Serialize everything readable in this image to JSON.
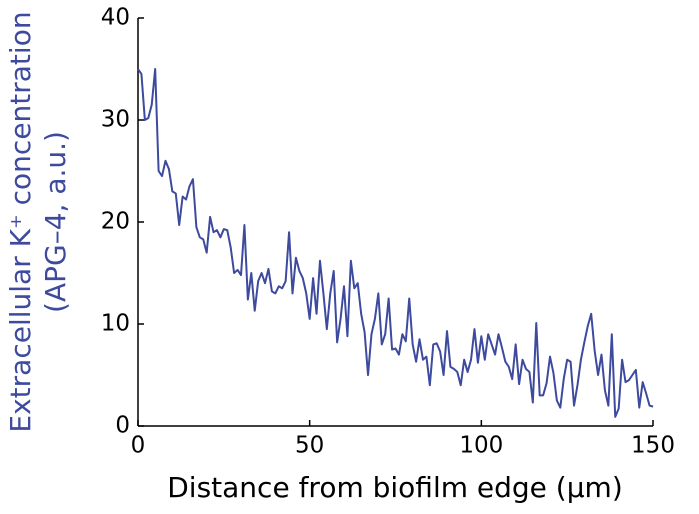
{
  "chart_data": {
    "type": "line",
    "xlabel": "Distance from biofilm edge (μm)",
    "ylabel": [
      "Extracellular K⁺ concentration",
      "(APG–4, a.u.)"
    ],
    "label_color": "#3d4a9e",
    "color": "#3d4a9e",
    "xlim": [
      0,
      150
    ],
    "xticks": [
      0,
      50,
      100,
      150
    ],
    "ylim": [
      0,
      40
    ],
    "yticks": [
      0,
      10,
      20,
      30,
      40
    ],
    "x": [
      0,
      1,
      2,
      3,
      4,
      5,
      6,
      7,
      8,
      9,
      10,
      11,
      12,
      13,
      14,
      15,
      16,
      17,
      18,
      19,
      20,
      21,
      22,
      23,
      24,
      25,
      26,
      27,
      28,
      29,
      30,
      31,
      32,
      33,
      34,
      35,
      36,
      37,
      38,
      39,
      40,
      41,
      42,
      43,
      44,
      45,
      46,
      47,
      48,
      49,
      50,
      51,
      52,
      53,
      54,
      55,
      56,
      57,
      58,
      59,
      60,
      61,
      62,
      63,
      64,
      65,
      66,
      67,
      68,
      69,
      70,
      71,
      72,
      73,
      74,
      75,
      76,
      77,
      78,
      79,
      80,
      81,
      82,
      83,
      84,
      85,
      86,
      87,
      88,
      89,
      90,
      91,
      92,
      93,
      94,
      95,
      96,
      97,
      98,
      99,
      100,
      101,
      102,
      103,
      104,
      105,
      106,
      107,
      108,
      109,
      110,
      111,
      112,
      113,
      114,
      115,
      116,
      117,
      118,
      119,
      120,
      121,
      122,
      123,
      124,
      125,
      126,
      127,
      128,
      129,
      130,
      131,
      132,
      133,
      134,
      135,
      136,
      137,
      138,
      139,
      140,
      141,
      142,
      143,
      144,
      145,
      146,
      147,
      148,
      149,
      150
    ],
    "values": [
      35,
      34.5,
      30,
      30.2,
      31.5,
      35,
      25,
      24.5,
      26,
      25.2,
      23,
      22.8,
      19.7,
      22.5,
      22.2,
      23.5,
      24.2,
      19.5,
      18.5,
      18.3,
      17,
      20.5,
      19,
      19.2,
      18.5,
      19.3,
      19.2,
      17.5,
      15,
      15.3,
      14.8,
      19.7,
      12.4,
      15,
      11.3,
      14.2,
      15,
      14,
      15.4,
      13.2,
      13,
      13.7,
      13.5,
      14.2,
      19,
      13,
      16.5,
      15.2,
      14.5,
      13,
      10.5,
      14.5,
      11,
      16.2,
      13,
      9.5,
      13,
      15.2,
      8.2,
      10.5,
      13.7,
      8.8,
      16.2,
      13.5,
      14,
      11,
      9.2,
      5,
      9,
      10.5,
      13,
      8,
      9,
      12.5,
      7.5,
      7.6,
      7,
      9,
      8.3,
      12.5,
      8,
      6.3,
      8.5,
      6.5,
      6.8,
      4,
      8,
      8.1,
      7.3,
      5,
      9.3,
      5.8,
      5.6,
      5.3,
      4,
      6.5,
      5.3,
      6.5,
      9.5,
      6.2,
      8.8,
      6.5,
      9,
      8,
      7,
      9,
      7.7,
      6.3,
      5.8,
      4.6,
      8,
      4.1,
      6.5,
      5.6,
      5.3,
      2.3,
      10.1,
      3,
      3,
      4.2,
      6.8,
      5.2,
      2.5,
      1.8,
      4.6,
      6.5,
      6.3,
      2,
      4,
      6.5,
      8.2,
      9.8,
      11,
      7.4,
      5,
      7,
      3.5,
      2,
      9,
      0.9,
      1.7,
      6.5,
      4.3,
      4.5,
      5,
      5.5,
      1.8,
      4.3,
      3.2,
      2,
      1.9
    ]
  }
}
